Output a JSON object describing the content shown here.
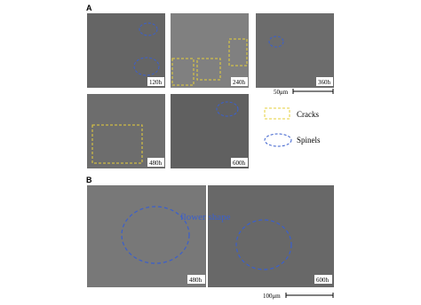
{
  "panel_a": {
    "label": "A",
    "images": [
      {
        "time": "120h"
      },
      {
        "time": "240h"
      },
      {
        "time": "360h"
      },
      {
        "time": "480h"
      },
      {
        "time": "600h"
      }
    ],
    "scale_bar": "50μm",
    "legend": {
      "cracks": "Cracks",
      "spinels": "Spinels"
    }
  },
  "panel_b": {
    "label": "B",
    "annotation": "flower shape",
    "images": [
      {
        "time": "480h"
      },
      {
        "time": "600h"
      }
    ],
    "scale_bar": "100μm"
  }
}
